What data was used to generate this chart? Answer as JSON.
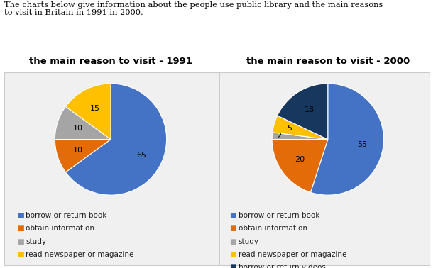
{
  "header_text": "The charts below give information about the people use public library and the main reasons\nto visit in Britain in 1991 in 2000.",
  "chart1_title": "the main reason to visit - 1991",
  "chart2_title": "the main reason to visit - 2000",
  "chart1_values": [
    65,
    10,
    10,
    15
  ],
  "chart2_values": [
    55,
    20,
    2,
    5,
    18
  ],
  "labels_1": [
    "borrow or return book",
    "obtain information",
    "study",
    "read newspaper or magazine"
  ],
  "labels_2": [
    "borrow or return book",
    "obtain information",
    "study",
    "read newspaper or magazine",
    "borrow or return videos"
  ],
  "colors": [
    "#4472C4",
    "#E36C09",
    "#A5A5A5",
    "#FFC000",
    "#17375E"
  ],
  "chart1_startangle": 90,
  "chart2_startangle": 90,
  "background_color": "#FFFFFF",
  "panel_background": "#F0F0F0",
  "border_color": "#CCCCCC",
  "title_fontsize": 9.5,
  "legend_fontsize": 7.5,
  "value_fontsize": 8
}
